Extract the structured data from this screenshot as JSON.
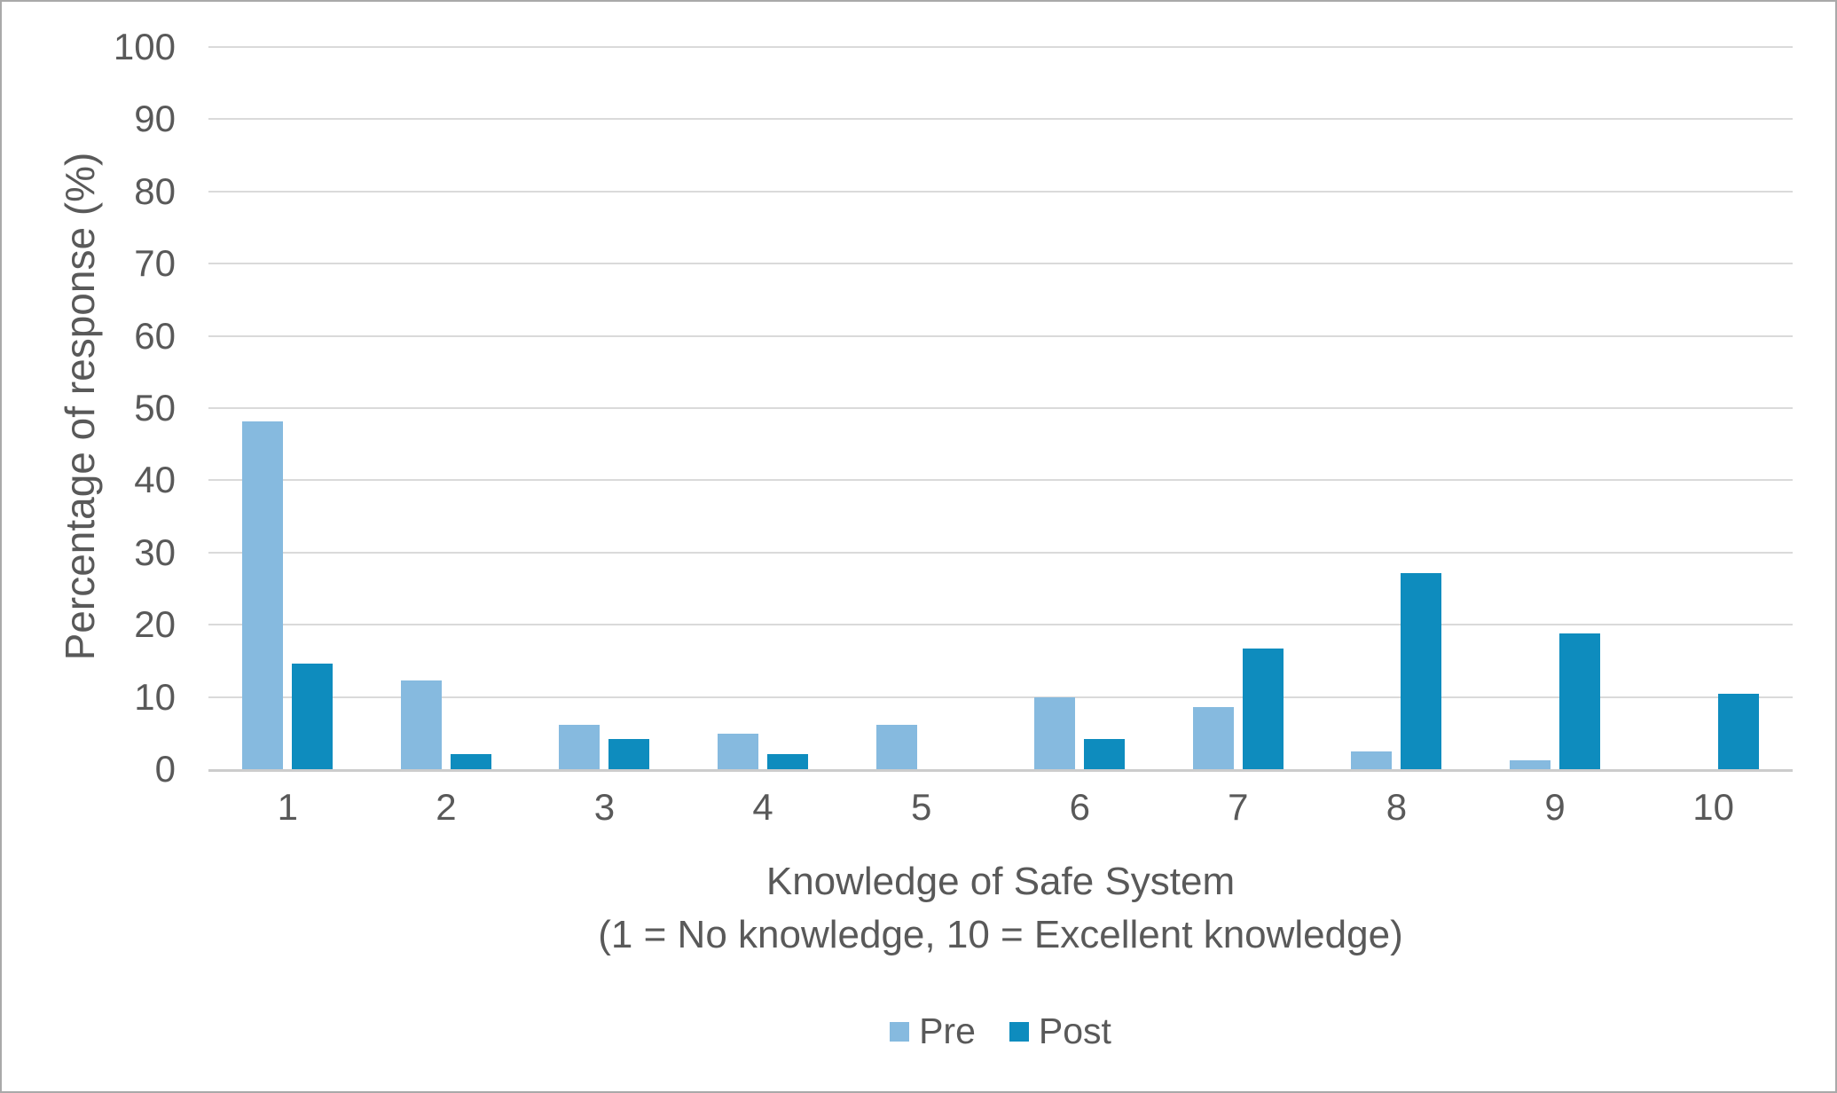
{
  "chart_data": {
    "type": "bar",
    "title": "",
    "categories": [
      "1",
      "2",
      "3",
      "4",
      "5",
      "6",
      "7",
      "8",
      "9",
      "10"
    ],
    "series": [
      {
        "name": "Pre",
        "color": "#86badf",
        "values": [
          48.1,
          12.3,
          6.2,
          4.9,
          6.2,
          9.9,
          8.6,
          2.5,
          1.2,
          0
        ]
      },
      {
        "name": "Post",
        "color": "#0e8cbe",
        "values": [
          14.6,
          2.1,
          4.2,
          2.1,
          0,
          4.2,
          16.7,
          27.1,
          18.8,
          10.4
        ]
      }
    ],
    "xlabel_line1": "Knowledge of Safe System",
    "xlabel_line2": "(1 = No knowledge, 10 = Excellent knowledge)",
    "ylabel": "Percentage of response (%)",
    "ylim": [
      0,
      100
    ],
    "yticks": [
      0,
      10,
      20,
      30,
      40,
      50,
      60,
      70,
      80,
      90,
      100
    ],
    "grid": true,
    "legend_position": "bottom",
    "colors": {
      "pre": "#86badf",
      "post": "#0e8cbe",
      "gridline": "#dadada",
      "axis_line": "#cccccc",
      "text": "#595959"
    }
  }
}
